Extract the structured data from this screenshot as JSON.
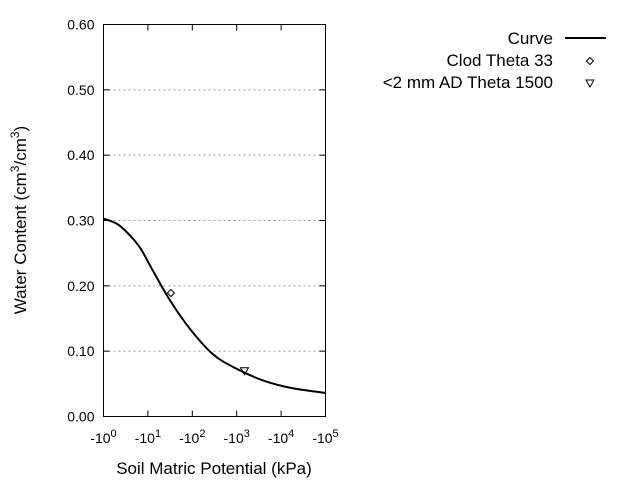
{
  "chart_data": {
    "type": "line",
    "xlabel": "Soil Matric Potential (kPa)",
    "ylabel_main": "Water Content (cm",
    "ylabel_sup1": "3",
    "ylabel_mid": "/cm",
    "ylabel_sup2": "3",
    "ylabel_end": ")",
    "x_scale": "log (negative potentials)",
    "xlim": [
      1,
      100000
    ],
    "ylim": [
      0,
      0.6
    ],
    "grid": "horizontal dotted",
    "legend_position": "top-right (outside plot)",
    "x_ticks": [
      {
        "base": "-10",
        "exp": "0",
        "value": 1
      },
      {
        "base": "-10",
        "exp": "1",
        "value": 10
      },
      {
        "base": "-10",
        "exp": "2",
        "value": 100
      },
      {
        "base": "-10",
        "exp": "3",
        "value": 1000
      },
      {
        "base": "-10",
        "exp": "4",
        "value": 10000
      },
      {
        "base": "-10",
        "exp": "5",
        "value": 100000
      }
    ],
    "y_ticks": [
      "0.00",
      "0.10",
      "0.20",
      "0.30",
      "0.40",
      "0.50",
      "0.60"
    ],
    "series": [
      {
        "name": "Curve",
        "style": "line",
        "color": "#000000",
        "x": [
          1,
          2,
          3.6,
          6.7,
          13,
          32,
          89,
          295,
          1000,
          4000,
          16000,
          100000
        ],
        "y": [
          0.303,
          0.295,
          0.28,
          0.258,
          0.223,
          0.177,
          0.134,
          0.095,
          0.073,
          0.055,
          0.044,
          0.036
        ]
      },
      {
        "name": "Clod Theta 33",
        "style": "diamond",
        "color": "#000000",
        "x": [
          33
        ],
        "y": [
          0.189
        ]
      },
      {
        "name": "<2 mm AD Theta 1500",
        "style": "triangle-down",
        "color": "#000000",
        "x": [
          1500
        ],
        "y": [
          0.07
        ]
      }
    ]
  }
}
